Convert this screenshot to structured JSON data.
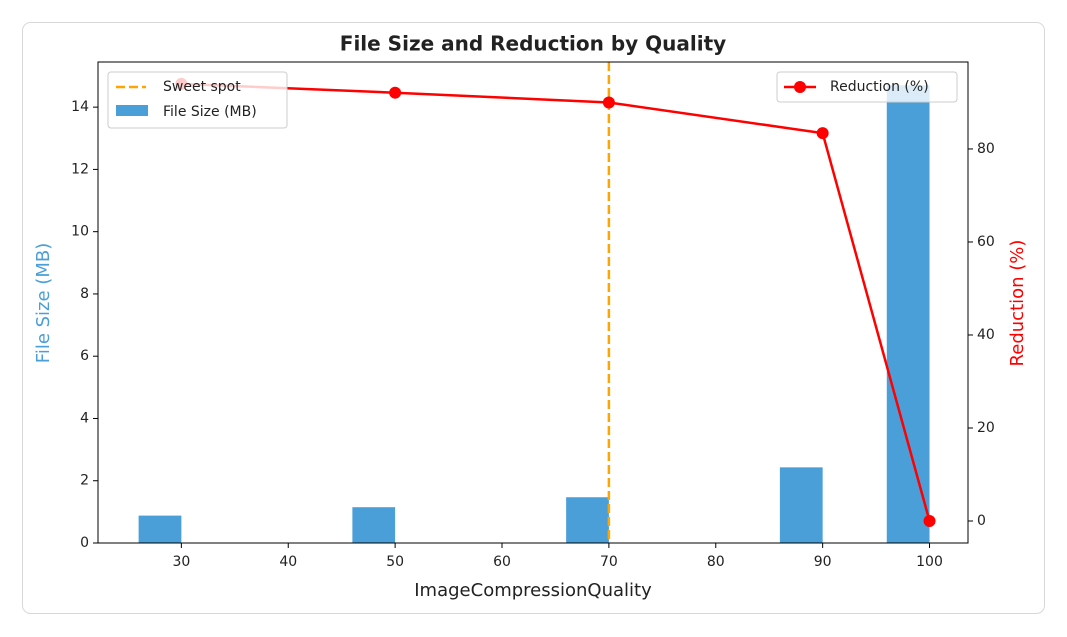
{
  "chart_data": {
    "type": "bar",
    "title": "File Size and Reduction by Quality",
    "xlabel": "ImageCompressionQuality",
    "ylabel": "File Size (MB)",
    "y2label": "Reduction (%)",
    "x": [
      30,
      50,
      70,
      90,
      100
    ],
    "series": [
      {
        "name": "File Size (MB)",
        "type": "bar",
        "color": "#4a9fd9",
        "axis": "y",
        "values": [
          0.88,
          1.15,
          1.47,
          2.43,
          14.7
        ]
      },
      {
        "name": "Reduction (%)",
        "type": "line",
        "color": "#ff0000",
        "axis": "y2",
        "values": [
          94.0,
          92.1,
          90.0,
          83.4,
          0
        ]
      }
    ],
    "vlines": [
      {
        "x": 70,
        "name": "Sweet spot",
        "color": "#ffa500"
      }
    ],
    "xlim": [
      22.2,
      103.6
    ],
    "xticks": [
      30,
      40,
      50,
      60,
      70,
      80,
      90,
      100
    ],
    "ylim": [
      0,
      15.45
    ],
    "yticks": [
      0,
      2,
      4,
      6,
      8,
      10,
      12,
      14
    ],
    "y2lim": [
      -4.73,
      98.7
    ],
    "y2ticks": [
      0,
      20,
      40,
      60,
      80
    ],
    "legend": [
      "upper left",
      "upper right"
    ]
  }
}
